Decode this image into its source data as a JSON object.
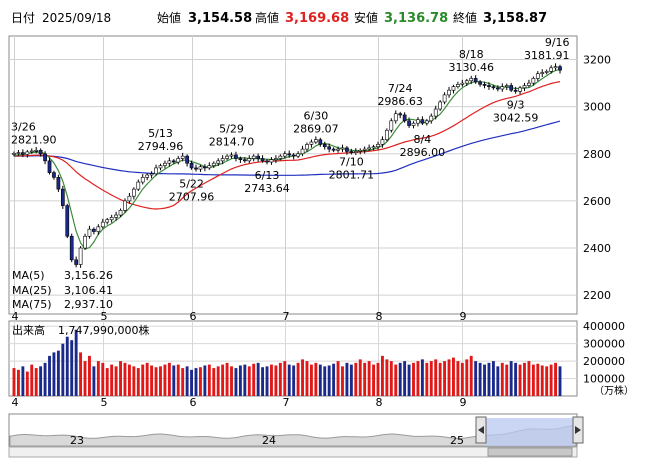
{
  "header": {
    "date_label": "日付",
    "date": "2025/09/18",
    "open_label": "始値",
    "open": "3,154.58",
    "high_label": "高値",
    "high": "3,169.68",
    "low_label": "安値",
    "low": "3,136.78",
    "close_label": "終値",
    "close": "3,158.87"
  },
  "colors": {
    "up": "#ffffff",
    "down": "#1b2a8a",
    "candle_outline": "#000000",
    "ma5": "#3c8c3c",
    "ma25": "#e02020",
    "ma75": "#2030c0",
    "volume_up": "#e01818",
    "volume_down": "#1b2a8a",
    "high_value": "#e02020",
    "low_value": "#2a8a2a",
    "navigator_fill": "#b8c8f0",
    "navigator_line": "#6f8fd8"
  },
  "chart_data": [
    {
      "type": "candlestick",
      "y_ticks": [
        "3200",
        "3000",
        "2800",
        "2600",
        "2400",
        "2200"
      ],
      "ylim": [
        2120,
        3300
      ],
      "x_month_labels": [
        "4",
        "5",
        "6",
        "7",
        "8",
        "9"
      ],
      "legend": {
        "ma5_label": "MA(5)",
        "ma5_value": "3,156.26",
        "ma25_label": "MA(25)",
        "ma25_value": "3,106.41",
        "ma75_label": "MA(75)",
        "ma75_value": "2,937.10"
      },
      "annotations": [
        {
          "date": "3/26",
          "value": "2821.90"
        },
        {
          "date": "5/13",
          "value": "2794.96"
        },
        {
          "date": "5/22",
          "value": "2707.96"
        },
        {
          "date": "5/29",
          "value": "2814.70"
        },
        {
          "date": "6/13",
          "value": "2743.64"
        },
        {
          "date": "6/30",
          "value": "2869.07"
        },
        {
          "date": "7/10",
          "value": "2801.71"
        },
        {
          "date": "7/24",
          "value": "2986.63"
        },
        {
          "date": "8/4",
          "value": "2896.00"
        },
        {
          "date": "8/18",
          "value": "3130.46"
        },
        {
          "date": "9/3",
          "value": "3042.59"
        },
        {
          "date": "9/16",
          "value": "3181.91"
        }
      ],
      "closes": [
        2802,
        2805,
        2798,
        2808,
        2812,
        2815,
        2800,
        2770,
        2720,
        2700,
        2650,
        2580,
        2450,
        2350,
        2330,
        2400,
        2450,
        2480,
        2470,
        2490,
        2510,
        2520,
        2530,
        2540,
        2560,
        2600,
        2620,
        2650,
        2680,
        2700,
        2710,
        2715,
        2740,
        2750,
        2760,
        2770,
        2765,
        2780,
        2790,
        2760,
        2740,
        2735,
        2745,
        2740,
        2750,
        2760,
        2770,
        2780,
        2790,
        2795,
        2780,
        2775,
        2770,
        2780,
        2790,
        2780,
        2770,
        2765,
        2775,
        2780,
        2790,
        2800,
        2795,
        2790,
        2800,
        2820,
        2840,
        2850,
        2860,
        2840,
        2830,
        2820,
        2815,
        2820,
        2825,
        2810,
        2805,
        2810,
        2815,
        2820,
        2825,
        2830,
        2840,
        2860,
        2900,
        2940,
        2970,
        2965,
        2940,
        2920,
        2930,
        2945,
        2930,
        2940,
        2960,
        2990,
        3020,
        3050,
        3070,
        3085,
        3095,
        3100,
        3110,
        3120,
        3105,
        3095,
        3090,
        3085,
        3080,
        3075,
        3085,
        3090,
        3070,
        3065,
        3080,
        3090,
        3100,
        3120,
        3140,
        3145,
        3150,
        3165,
        3170,
        3155
      ]
    },
    {
      "type": "bar",
      "title": "出来高",
      "latest_value": "1,747,990,000株",
      "y_ticks": [
        "400000",
        "300000",
        "200000",
        "100000"
      ],
      "unit": "（万株）",
      "ylim": [
        0,
        430000
      ],
      "values": [
        160000,
        150000,
        170000,
        140000,
        180000,
        160000,
        170000,
        190000,
        230000,
        250000,
        260000,
        300000,
        340000,
        320000,
        380000,
        250000,
        200000,
        230000,
        170000,
        200000,
        190000,
        160000,
        180000,
        170000,
        200000,
        190000,
        180000,
        170000,
        160000,
        180000,
        190000,
        175000,
        165000,
        170000,
        180000,
        190000,
        175000,
        180000,
        160000,
        170000,
        150000,
        160000,
        165000,
        175000,
        180000,
        160000,
        170000,
        180000,
        190000,
        170000,
        160000,
        175000,
        180000,
        170000,
        185000,
        190000,
        165000,
        170000,
        180000,
        175000,
        190000,
        200000,
        180000,
        175000,
        190000,
        210000,
        200000,
        180000,
        190000,
        180000,
        170000,
        175000,
        185000,
        200000,
        170000,
        190000,
        180000,
        190000,
        210000,
        190000,
        200000,
        180000,
        190000,
        230000,
        210000,
        200000,
        180000,
        190000,
        200000,
        180000,
        190000,
        200000,
        210000,
        190000,
        200000,
        210000,
        190000,
        200000,
        210000,
        220000,
        200000,
        190000,
        210000,
        230000,
        200000,
        190000,
        180000,
        190000,
        200000,
        170000,
        190000,
        180000,
        200000,
        190000,
        180000,
        190000,
        200000,
        180000,
        185000,
        175000,
        170000,
        180000,
        190000,
        170000
      ]
    },
    {
      "type": "area",
      "x_labels": [
        "23",
        "24",
        "25"
      ]
    }
  ]
}
